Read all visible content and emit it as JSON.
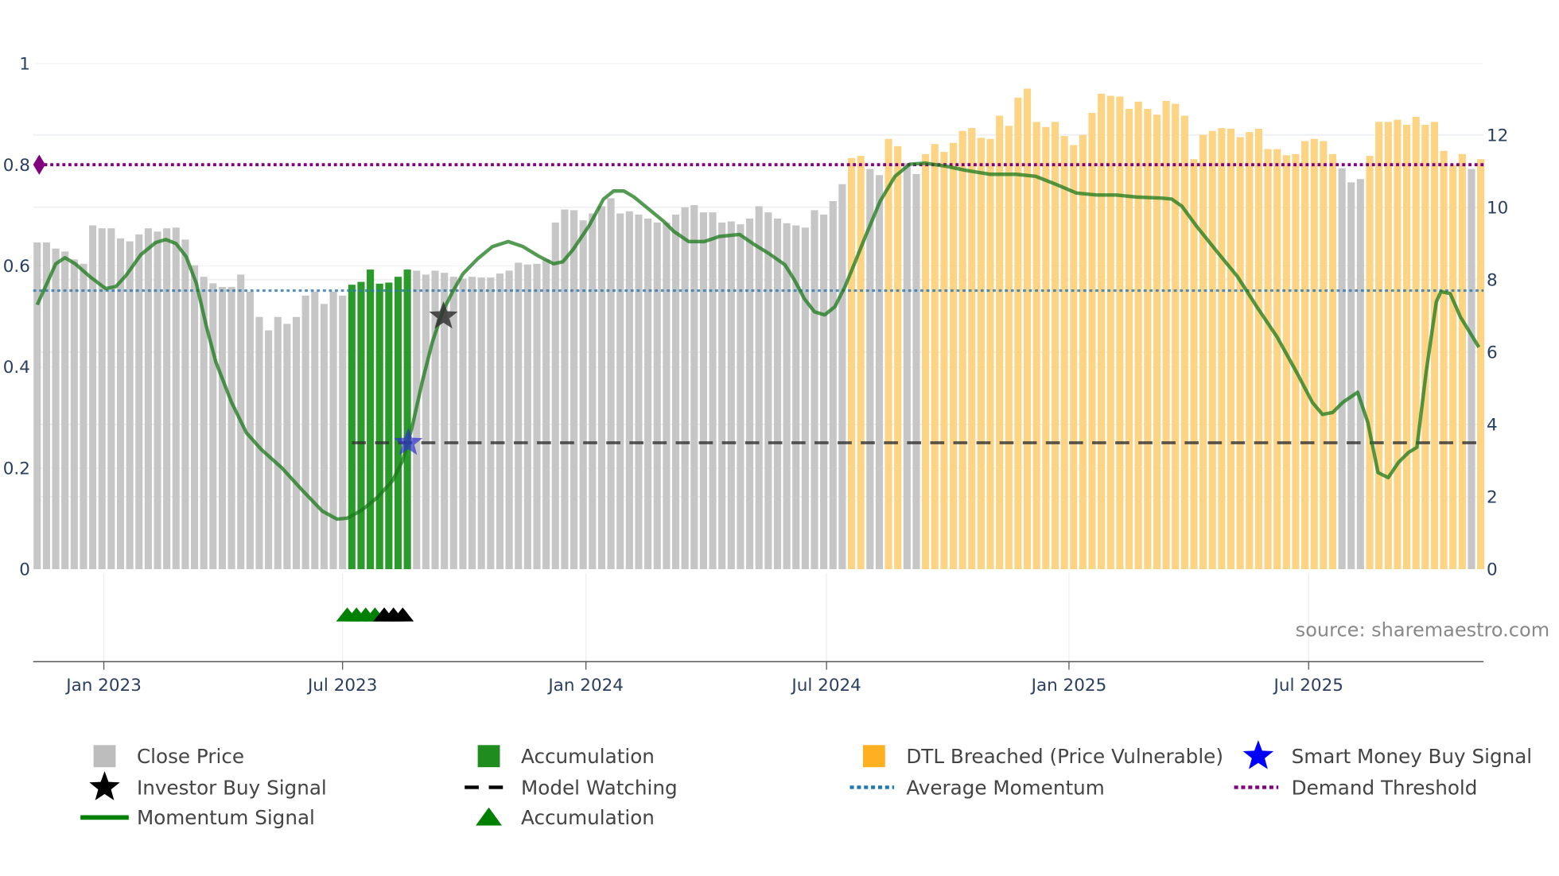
{
  "chart_data": {
    "type": "bar",
    "title": "",
    "xlabel": "",
    "ylabel_left": "",
    "ylabel_right": "",
    "x_start_week_index": 0,
    "week_count": 157,
    "left_axis": {
      "range": [
        0,
        1
      ],
      "ticks": [
        "0",
        "0.2",
        "0.4",
        "0.6",
        "0.8",
        "1"
      ],
      "tick_values": [
        0,
        0.2,
        0.4,
        0.6,
        0.8,
        1
      ]
    },
    "right_axis": {
      "range": [
        0,
        13.95
      ],
      "ticks": [
        "0",
        "2",
        "4",
        "6",
        "8",
        "10",
        "12"
      ],
      "tick_values": [
        0,
        2,
        4,
        6,
        8,
        10,
        12
      ]
    },
    "x_ticks": [
      {
        "label": "Jan 2023",
        "week": 7.2
      },
      {
        "label": "Jul 2023",
        "week": 33.0
      },
      {
        "label": "Jan 2024",
        "week": 59.3
      },
      {
        "label": "Jul 2024",
        "week": 85.3
      },
      {
        "label": "Jan 2025",
        "week": 111.5
      },
      {
        "label": "Jul 2025",
        "week": 137.4
      }
    ],
    "close_price": [
      9.03,
      9.03,
      8.86,
      8.78,
      8.56,
      8.44,
      9.5,
      9.42,
      9.42,
      9.14,
      9.06,
      9.25,
      9.42,
      9.33,
      9.42,
      9.44,
      9.11,
      8.4,
      8.08,
      7.9,
      7.8,
      7.8,
      8.14,
      7.67,
      6.97,
      6.6,
      6.97,
      6.78,
      6.97,
      7.56,
      7.67,
      7.33,
      7.67,
      7.56,
      7.86,
      7.94,
      8.28,
      7.89,
      7.92,
      8.08,
      8.28,
      8.25,
      8.14,
      8.25,
      8.19,
      8.08,
      8.03,
      8.08,
      8.06,
      8.06,
      8.17,
      8.25,
      8.47,
      8.42,
      8.44,
      8.56,
      9.58,
      9.94,
      9.92,
      9.64,
      9.83,
      10.03,
      10.25,
      9.83,
      9.89,
      9.8,
      9.69,
      9.58,
      9.58,
      9.8,
      10.0,
      10.06,
      9.86,
      9.86,
      9.58,
      9.61,
      9.53,
      9.69,
      10.03,
      9.86,
      9.69,
      9.56,
      9.5,
      9.44,
      9.92,
      9.8,
      10.17,
      10.64,
      11.36,
      11.42,
      11.06,
      10.89,
      11.89,
      11.69,
      11.22,
      10.92,
      11.47,
      11.75,
      11.53,
      11.78,
      12.11,
      12.19,
      11.92,
      11.89,
      12.53,
      12.25,
      13.03,
      13.28,
      12.36,
      12.22,
      12.36,
      11.97,
      11.72,
      12.0,
      12.61,
      13.14,
      13.08,
      13.06,
      12.72,
      12.92,
      12.72,
      12.56,
      12.94,
      12.86,
      12.53,
      11.33,
      12.0,
      12.11,
      12.19,
      12.17,
      11.94,
      12.08,
      12.17,
      11.61,
      11.61,
      11.44,
      11.47,
      11.83,
      11.89,
      11.83,
      11.47,
      11.08,
      10.69,
      10.78,
      11.42,
      12.36,
      12.36,
      12.42,
      12.28,
      12.5,
      12.28,
      12.36,
      11.56,
      11.17,
      11.47,
      11.06,
      11.33
    ],
    "bar_status_segments": [
      {
        "status": "close",
        "from": 0,
        "to": 33
      },
      {
        "status": "accumulation",
        "from": 34,
        "to": 40
      },
      {
        "status": "close",
        "from": 41,
        "to": 87
      },
      {
        "status": "dtl",
        "from": 88,
        "to": 89
      },
      {
        "status": "close",
        "from": 90,
        "to": 91
      },
      {
        "status": "dtl",
        "from": 92,
        "to": 93
      },
      {
        "status": "close",
        "from": 94,
        "to": 95
      },
      {
        "status": "dtl",
        "from": 96,
        "to": 140
      },
      {
        "status": "close",
        "from": 141,
        "to": 143
      },
      {
        "status": "dtl",
        "from": 144,
        "to": 154
      },
      {
        "status": "close",
        "from": 155,
        "to": 155
      },
      {
        "status": "dtl",
        "from": 156,
        "to": 156
      }
    ],
    "momentum": [
      [
        0,
        0.523
      ],
      [
        0.9,
        0.559
      ],
      [
        2.0,
        0.604
      ],
      [
        3.0,
        0.616
      ],
      [
        4.1,
        0.604
      ],
      [
        5.8,
        0.577
      ],
      [
        7.4,
        0.555
      ],
      [
        8.5,
        0.559
      ],
      [
        9.6,
        0.581
      ],
      [
        11.2,
        0.622
      ],
      [
        12.8,
        0.646
      ],
      [
        13.9,
        0.652
      ],
      [
        15.0,
        0.644
      ],
      [
        16.1,
        0.618
      ],
      [
        17.2,
        0.565
      ],
      [
        18.3,
        0.479
      ],
      [
        19.3,
        0.41
      ],
      [
        21.0,
        0.33
      ],
      [
        22.6,
        0.27
      ],
      [
        24.2,
        0.237
      ],
      [
        26.4,
        0.201
      ],
      [
        28.6,
        0.157
      ],
      [
        30.8,
        0.115
      ],
      [
        32.4,
        0.099
      ],
      [
        33.5,
        0.101
      ],
      [
        35.1,
        0.117
      ],
      [
        36.7,
        0.141
      ],
      [
        38.4,
        0.175
      ],
      [
        39.5,
        0.215
      ],
      [
        40.5,
        0.28
      ],
      [
        41.6,
        0.37
      ],
      [
        42.7,
        0.449
      ],
      [
        43.8,
        0.509
      ],
      [
        44.9,
        0.549
      ],
      [
        46.0,
        0.584
      ],
      [
        47.6,
        0.614
      ],
      [
        49.2,
        0.638
      ],
      [
        50.9,
        0.648
      ],
      [
        52.5,
        0.638
      ],
      [
        54.1,
        0.62
      ],
      [
        55.8,
        0.604
      ],
      [
        56.8,
        0.608
      ],
      [
        57.9,
        0.632
      ],
      [
        59.6,
        0.678
      ],
      [
        61.2,
        0.732
      ],
      [
        62.3,
        0.748
      ],
      [
        63.4,
        0.748
      ],
      [
        64.5,
        0.736
      ],
      [
        66.1,
        0.712
      ],
      [
        67.7,
        0.688
      ],
      [
        68.8,
        0.668
      ],
      [
        70.4,
        0.648
      ],
      [
        72.1,
        0.648
      ],
      [
        73.7,
        0.658
      ],
      [
        75.9,
        0.662
      ],
      [
        77.5,
        0.642
      ],
      [
        79.1,
        0.624
      ],
      [
        80.8,
        0.602
      ],
      [
        81.8,
        0.573
      ],
      [
        82.9,
        0.535
      ],
      [
        84.0,
        0.509
      ],
      [
        85.1,
        0.503
      ],
      [
        86.2,
        0.519
      ],
      [
        87.3,
        0.559
      ],
      [
        88.4,
        0.608
      ],
      [
        89.5,
        0.658
      ],
      [
        91.1,
        0.728
      ],
      [
        92.7,
        0.777
      ],
      [
        94.3,
        0.801
      ],
      [
        96.0,
        0.803
      ],
      [
        98.2,
        0.797
      ],
      [
        100.3,
        0.789
      ],
      [
        103.0,
        0.781
      ],
      [
        105.8,
        0.781
      ],
      [
        107.9,
        0.777
      ],
      [
        110.1,
        0.761
      ],
      [
        112.3,
        0.744
      ],
      [
        114.5,
        0.74
      ],
      [
        116.6,
        0.74
      ],
      [
        118.8,
        0.736
      ],
      [
        121.5,
        0.734
      ],
      [
        122.6,
        0.732
      ],
      [
        123.7,
        0.718
      ],
      [
        125.3,
        0.678
      ],
      [
        127.5,
        0.628
      ],
      [
        129.7,
        0.579
      ],
      [
        131.8,
        0.519
      ],
      [
        134.0,
        0.459
      ],
      [
        136.2,
        0.386
      ],
      [
        137.8,
        0.33
      ],
      [
        138.9,
        0.306
      ],
      [
        140.0,
        0.31
      ],
      [
        141.1,
        0.33
      ],
      [
        142.7,
        0.35
      ],
      [
        143.8,
        0.29
      ],
      [
        144.9,
        0.191
      ],
      [
        146.0,
        0.181
      ],
      [
        147.1,
        0.211
      ],
      [
        148.2,
        0.231
      ],
      [
        149.1,
        0.241
      ],
      [
        150.1,
        0.39
      ],
      [
        151.2,
        0.529
      ],
      [
        151.7,
        0.549
      ],
      [
        152.7,
        0.545
      ],
      [
        153.8,
        0.499
      ],
      [
        155.8,
        0.439
      ]
    ],
    "average_momentum": 0.551,
    "demand_threshold": 0.8,
    "model_watching": {
      "value": 0.25,
      "from_week": 34,
      "to_week": 156
    },
    "investor_buy_signals": [
      {
        "week": 43.9,
        "value": 0.5
      }
    ],
    "smart_money_buy_signals": [
      {
        "week": 40.1,
        "value": 0.25
      }
    ],
    "accumulation_markers": [
      {
        "week": 33.5,
        "color": "green"
      },
      {
        "week": 34.5,
        "color": "green"
      },
      {
        "week": 35.5,
        "color": "green"
      },
      {
        "week": 36.5,
        "color": "green"
      },
      {
        "week": 37.5,
        "color": "black"
      },
      {
        "week": 38.5,
        "color": "black"
      },
      {
        "week": 39.5,
        "color": "black"
      }
    ],
    "legend": {
      "placement": "bottom",
      "items": [
        {
          "label": "Close Price",
          "icon": "square",
          "color": "#bdbdbd"
        },
        {
          "label": "Accumulation",
          "icon": "square",
          "color": "#1e8c1e"
        },
        {
          "label": "DTL Breached (Price Vulnerable)",
          "icon": "square",
          "color": "#ffb020"
        },
        {
          "label": "Smart Money Buy Signal",
          "icon": "star",
          "color": "#0000ff"
        },
        {
          "label": "Investor Buy Signal",
          "icon": "star",
          "color": "#000000"
        },
        {
          "label": "Model Watching",
          "icon": "dash",
          "color": "#000000"
        },
        {
          "label": "Average Momentum",
          "icon": "dot",
          "color": "#1f77b4"
        },
        {
          "label": "Demand Threshold",
          "icon": "dot",
          "color": "#800080"
        },
        {
          "label": "Momentum Signal",
          "icon": "line",
          "color": "#008000"
        },
        {
          "label": "Accumulation",
          "icon": "triangle",
          "color": "#008000"
        }
      ]
    },
    "colors": {
      "close": "#c6c6c6",
      "accumulation": "#2a9a2a",
      "dtl": "#fdd384",
      "momentum": "#1a7a1a",
      "avg": "#2b78b0",
      "threshold": "#800080"
    }
  },
  "source": "source: sharemaestro.com"
}
